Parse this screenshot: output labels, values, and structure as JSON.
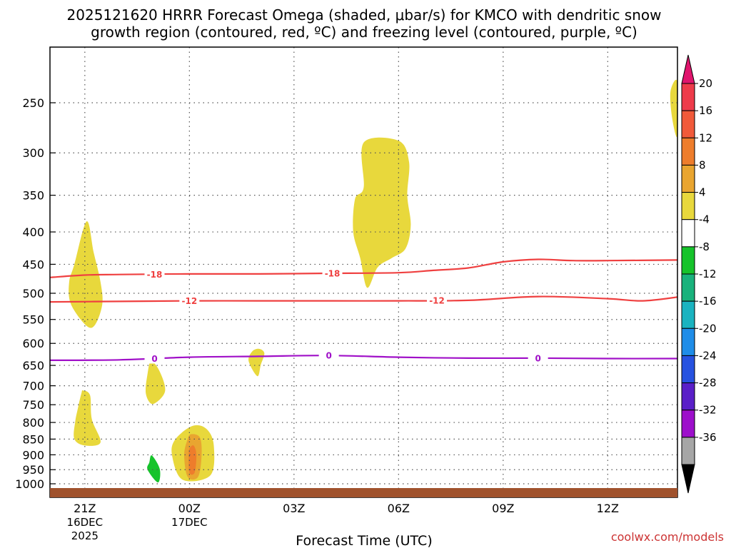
{
  "chart_data": {
    "type": "heatmap",
    "title_line1": "2025121620 HRRR Forecast Omega (shaded, μbar/s) for KMCO with dendritic snow",
    "title_line2": "growth region (contoured, red, ºC) and freezing level (contoured, purple, ºC)",
    "xlabel": "Forecast Time (UTC)",
    "credit": "coolwx.com/models",
    "x_ticks": [
      {
        "hour": 1,
        "label": "21Z",
        "sub1": "16DEC",
        "sub2": "2025"
      },
      {
        "hour": 4,
        "label": "00Z",
        "sub1": "17DEC",
        "sub2": ""
      },
      {
        "hour": 7,
        "label": "03Z",
        "sub1": "",
        "sub2": ""
      },
      {
        "hour": 10,
        "label": "06Z",
        "sub1": "",
        "sub2": ""
      },
      {
        "hour": 13,
        "label": "09Z",
        "sub1": "",
        "sub2": ""
      },
      {
        "hour": 16,
        "label": "12Z",
        "sub1": "",
        "sub2": ""
      }
    ],
    "xlim_hours": [
      0,
      18
    ],
    "y_axis": "pressure (hPa), log scale, inverted",
    "ylim_hpa": [
      1000,
      200
    ],
    "y_ticks": [
      250,
      300,
      350,
      400,
      450,
      500,
      550,
      600,
      650,
      700,
      750,
      800,
      850,
      900,
      950,
      1000
    ],
    "grid": "dotted",
    "colorbar": {
      "ticks": [
        "20",
        "16",
        "12",
        "8",
        "4",
        "-4",
        "-8",
        "-12",
        "-16",
        "-20",
        "-24",
        "-28",
        "-32",
        "-36"
      ],
      "colors": [
        "#ee3b4a",
        "#f15a3a",
        "#ee7d2c",
        "#e9a530",
        "#e8d83c",
        "#ffffff",
        "#16c32b",
        "#19b27c",
        "#1ab3c0",
        "#1f8de8",
        "#2752e0",
        "#5a1fc8",
        "#9d0fcb",
        "#a6a6a6"
      ],
      "top_arrow_color": "#e0156d",
      "bottom_arrow_color": "#000000"
    },
    "contours": [
      {
        "name": "-18",
        "color": "#ef4040",
        "label_hours": [
          3,
          8.1
        ],
        "points": [
          [
            0,
            472
          ],
          [
            1,
            468
          ],
          [
            2,
            467
          ],
          [
            4,
            466
          ],
          [
            6,
            466
          ],
          [
            8,
            465
          ],
          [
            10,
            464
          ],
          [
            11,
            460
          ],
          [
            12,
            456
          ],
          [
            13,
            446
          ],
          [
            14,
            442
          ],
          [
            15,
            444
          ],
          [
            16,
            444
          ],
          [
            18,
            443
          ]
        ]
      },
      {
        "name": "-12",
        "color": "#ef4040",
        "label_hours": [
          4,
          11.1
        ],
        "points": [
          [
            0,
            516
          ],
          [
            2,
            515
          ],
          [
            4,
            514
          ],
          [
            6,
            514
          ],
          [
            8,
            514
          ],
          [
            10,
            514
          ],
          [
            12,
            513
          ],
          [
            14,
            506
          ],
          [
            16,
            510
          ],
          [
            17,
            514
          ],
          [
            18,
            507
          ]
        ]
      },
      {
        "name": "0",
        "color": "#a010c8",
        "label_hours": [
          3,
          8,
          14
        ],
        "points": [
          [
            0,
            638
          ],
          [
            2,
            637
          ],
          [
            4,
            631
          ],
          [
            6,
            629
          ],
          [
            8,
            627
          ],
          [
            10,
            631
          ],
          [
            12,
            633
          ],
          [
            14,
            633
          ],
          [
            16,
            634
          ],
          [
            18,
            634
          ]
        ]
      }
    ],
    "omega_regions": [
      {
        "name": "yellow-4-8",
        "color": "#e8d83c",
        "points": [
          [
            1.05,
            385
          ],
          [
            1.25,
            430
          ],
          [
            1.45,
            480
          ],
          [
            1.5,
            520
          ],
          [
            1.3,
            560
          ],
          [
            1.05,
            563
          ],
          [
            0.6,
            520
          ],
          [
            0.55,
            480
          ],
          [
            0.7,
            450
          ]
        ]
      },
      {
        "name": "yellow-4-8",
        "color": "#e8d83c",
        "points": [
          [
            0.95,
            712
          ],
          [
            1.15,
            725
          ],
          [
            1.2,
            790
          ],
          [
            1.45,
            860
          ],
          [
            1.0,
            870
          ],
          [
            0.7,
            850
          ],
          [
            0.72,
            800
          ],
          [
            0.8,
            760
          ],
          [
            0.9,
            720
          ]
        ]
      },
      {
        "name": "yellow-4-8",
        "color": "#e8d83c",
        "points": [
          [
            2.9,
            640
          ],
          [
            3.15,
            665
          ],
          [
            3.3,
            715
          ],
          [
            2.95,
            748
          ],
          [
            2.75,
            720
          ],
          [
            2.8,
            670
          ]
        ]
      },
      {
        "name": "yellow-4-8",
        "color": "#e8d83c",
        "points": [
          [
            5.8,
            618
          ],
          [
            6.0,
            612
          ],
          [
            6.15,
            622
          ],
          [
            6.05,
            648
          ],
          [
            5.95,
            676
          ],
          [
            5.7,
            640
          ]
        ]
      },
      {
        "name": "yellow-4-8",
        "color": "#e8d83c",
        "points": [
          [
            9.0,
            289
          ],
          [
            10.0,
            287
          ],
          [
            10.3,
            310
          ],
          [
            10.25,
            350
          ],
          [
            10.35,
            390
          ],
          [
            10.2,
            425
          ],
          [
            9.8,
            440
          ],
          [
            9.4,
            455
          ],
          [
            9.1,
            490
          ],
          [
            8.9,
            440
          ],
          [
            8.7,
            400
          ],
          [
            8.75,
            355
          ],
          [
            9.0,
            340
          ]
        ]
      },
      {
        "name": "yellow-4-8",
        "color": "#e8d83c",
        "points": [
          [
            18.0,
            232
          ],
          [
            17.8,
            240
          ],
          [
            17.85,
            265
          ],
          [
            18.0,
            282
          ]
        ]
      },
      {
        "name": "yellow-4-8",
        "color": "#e8d83c",
        "points": [
          [
            3.6,
            850
          ],
          [
            4.1,
            810
          ],
          [
            4.5,
            820
          ],
          [
            4.7,
            870
          ],
          [
            4.6,
            970
          ],
          [
            3.8,
            985
          ],
          [
            3.5,
            900
          ]
        ]
      },
      {
        "name": "orange-8-12",
        "color": "#e9a530",
        "points": [
          [
            3.95,
            850
          ],
          [
            4.05,
            835
          ],
          [
            4.3,
            845
          ],
          [
            4.35,
            900
          ],
          [
            4.25,
            975
          ],
          [
            3.95,
            975
          ],
          [
            3.85,
            900
          ]
        ]
      },
      {
        "name": "orange-12-16",
        "color": "#ee7d2c",
        "points": [
          [
            4.0,
            880
          ],
          [
            4.12,
            870
          ],
          [
            4.2,
            900
          ],
          [
            4.15,
            960
          ],
          [
            4.0,
            960
          ],
          [
            3.98,
            900
          ]
        ]
      },
      {
        "name": "green-neg4-neg8",
        "color": "#16c32b",
        "points": [
          [
            2.92,
            902
          ],
          [
            3.15,
            948
          ],
          [
            3.1,
            995
          ],
          [
            2.8,
            950
          ],
          [
            2.85,
            925
          ]
        ]
      }
    ],
    "ground_color": "#a0522d"
  }
}
